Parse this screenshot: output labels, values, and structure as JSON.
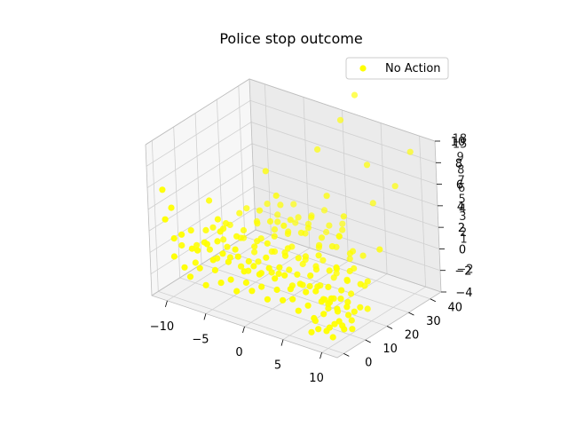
{
  "chart_data": {
    "type": "scatter",
    "title": "Police stop outcome",
    "xlabel": "",
    "ylabel": "",
    "zlabel": "",
    "xlim": [
      -12,
      12
    ],
    "ylim": [
      -3,
      45
    ],
    "zlim": [
      -4,
      10
    ],
    "x_ticks": [
      "−10",
      "−5",
      "0",
      "5",
      "10"
    ],
    "y_ticks": [
      "0",
      "10",
      "20",
      "30",
      "40"
    ],
    "z_ticks_primary": [
      "−4",
      "−2",
      "0",
      "2",
      "4",
      "6",
      "8",
      "10"
    ],
    "z_ticks_overlap": [
      "−2",
      "1",
      "2",
      "3",
      "4",
      "5",
      "6",
      "7",
      "8",
      "9",
      "15",
      "18"
    ],
    "grid": true,
    "legend_position": "top-right",
    "series": [
      {
        "name": "No Action",
        "color": "#ffff00",
        "points": [
          [
            -11.5,
            2,
            5.3
          ],
          [
            -11,
            1,
            2.8
          ],
          [
            -10.5,
            3,
            0.9
          ],
          [
            -10,
            1,
            -0.4
          ],
          [
            -9.5,
            3,
            1.5
          ],
          [
            -9,
            2,
            -1.3
          ],
          [
            -8.5,
            4,
            0.3
          ],
          [
            -8,
            1,
            -1.8
          ],
          [
            -7.5,
            3,
            0.5
          ],
          [
            -7,
            2,
            -0.9
          ],
          [
            -6.5,
            4,
            1.2
          ],
          [
            -6,
            1,
            -2.1
          ],
          [
            -5.5,
            3,
            0.1
          ],
          [
            -5,
            2,
            -0.6
          ],
          [
            -4.5,
            4,
            0.8
          ],
          [
            -4,
            1,
            -1.4
          ],
          [
            -3.5,
            3,
            0.4
          ],
          [
            -3,
            2,
            -1
          ],
          [
            -2.5,
            4,
            1
          ],
          [
            -2,
            1,
            -1.7
          ],
          [
            -1.5,
            3,
            0
          ],
          [
            -1,
            2,
            -0.8
          ],
          [
            -0.5,
            4,
            0.6
          ],
          [
            0,
            1,
            -1.2
          ],
          [
            0.5,
            3,
            0.2
          ],
          [
            1,
            2,
            -0.7
          ],
          [
            1.5,
            4,
            0.9
          ],
          [
            2,
            1,
            -1.5
          ],
          [
            2.5,
            3,
            0.3
          ],
          [
            3,
            2,
            -0.5
          ],
          [
            3.5,
            4,
            0.7
          ],
          [
            4,
            1,
            -1.1
          ],
          [
            4.5,
            3,
            -0.2
          ],
          [
            5,
            2,
            -0.9
          ],
          [
            5.5,
            4,
            0.4
          ],
          [
            6,
            1,
            -1.6
          ],
          [
            6.5,
            3,
            0
          ],
          [
            7,
            2,
            -1
          ],
          [
            7.5,
            4,
            0.2
          ],
          [
            8,
            1,
            -1.8
          ],
          [
            8.5,
            3,
            -0.4
          ],
          [
            9,
            2,
            -1.3
          ],
          [
            9.5,
            4,
            0
          ],
          [
            10,
            1,
            -2.2
          ],
          [
            10.5,
            3,
            -0.6
          ],
          [
            11,
            2,
            -1.5
          ],
          [
            11.5,
            4,
            -0.3
          ],
          [
            -11,
            8,
            -0.5
          ],
          [
            -10,
            9,
            1
          ],
          [
            -9,
            7,
            -1.5
          ],
          [
            -8,
            8,
            0.5
          ],
          [
            -7,
            10,
            -1
          ],
          [
            -6,
            7,
            1.2
          ],
          [
            -5,
            9,
            -0.3
          ],
          [
            -4,
            8,
            0.8
          ],
          [
            -3,
            10,
            -1.2
          ],
          [
            -2,
            7,
            0.3
          ],
          [
            -1,
            9,
            -0.8
          ],
          [
            0,
            8,
            1
          ],
          [
            1,
            10,
            -0.5
          ],
          [
            2,
            7,
            0.7
          ],
          [
            3,
            9,
            -1
          ],
          [
            4,
            8,
            0.4
          ],
          [
            5,
            10,
            -0.7
          ],
          [
            6,
            7,
            0.9
          ],
          [
            7,
            9,
            -1.3
          ],
          [
            8,
            8,
            0.2
          ],
          [
            9,
            10,
            -0.9
          ],
          [
            10,
            7,
            0.5
          ],
          [
            11,
            9,
            -1.5
          ],
          [
            -10.5,
            13,
            -1
          ],
          [
            -9.5,
            14,
            0.5
          ],
          [
            -8.5,
            12,
            -0.8
          ],
          [
            -7.5,
            15,
            1
          ],
          [
            -6.5,
            13,
            -0.2
          ],
          [
            -5.5,
            14,
            0.9
          ],
          [
            -4.5,
            12,
            -1.4
          ],
          [
            -3.5,
            15,
            0.3
          ],
          [
            -2.5,
            13,
            -0.6
          ],
          [
            -1.5,
            14,
            1.2
          ],
          [
            -0.5,
            12,
            -1
          ],
          [
            0.5,
            15,
            0.4
          ],
          [
            1.5,
            13,
            -0.4
          ],
          [
            2.5,
            14,
            0.8
          ],
          [
            3.5,
            12,
            -1.2
          ],
          [
            4.5,
            15,
            0.1
          ],
          [
            5.5,
            13,
            -0.9
          ],
          [
            6.5,
            14,
            0.6
          ],
          [
            7.5,
            12,
            -1.5
          ],
          [
            8.5,
            15,
            0
          ],
          [
            9.5,
            13,
            -0.7
          ],
          [
            10.5,
            14,
            0.3
          ],
          [
            -10,
            19,
            0
          ],
          [
            -9,
            20,
            -1
          ],
          [
            -8,
            18,
            1
          ],
          [
            -7,
            21,
            -0.5
          ],
          [
            -6,
            19,
            0.7
          ],
          [
            -5,
            20,
            -1.2
          ],
          [
            -4,
            18,
            0.3
          ],
          [
            -3,
            21,
            -0.8
          ],
          [
            -2,
            19,
            1.1
          ],
          [
            -1,
            20,
            -0.3
          ],
          [
            0,
            18,
            0.6
          ],
          [
            1,
            21,
            -1
          ],
          [
            2,
            19,
            0.2
          ],
          [
            3,
            20,
            -0.6
          ],
          [
            4,
            18,
            0.9
          ],
          [
            5,
            21,
            -1.3
          ],
          [
            6,
            19,
            0
          ],
          [
            7,
            20,
            -0.9
          ],
          [
            8,
            18,
            0.4
          ],
          [
            9,
            21,
            -1.1
          ],
          [
            10,
            19,
            -0.2
          ],
          [
            -9.5,
            25,
            -0.4
          ],
          [
            -8.5,
            26,
            0.8
          ],
          [
            -7.5,
            24,
            -1
          ],
          [
            -6.5,
            27,
            0.2
          ],
          [
            -5.5,
            25,
            -0.7
          ],
          [
            -4.5,
            26,
            1
          ],
          [
            -3.5,
            24,
            -1.3
          ],
          [
            -2.5,
            27,
            0.4
          ],
          [
            -1.5,
            25,
            -0.5
          ],
          [
            -0.5,
            26,
            0.9
          ],
          [
            0.5,
            24,
            -1.1
          ],
          [
            1.5,
            27,
            0.1
          ],
          [
            2.5,
            25,
            -0.8
          ],
          [
            3.5,
            26,
            0.6
          ],
          [
            4.5,
            24,
            -1.4
          ],
          [
            5.5,
            27,
            0.3
          ],
          [
            6.5,
            25,
            -0.6
          ],
          [
            7.5,
            26,
            0.7
          ],
          [
            -9,
            31,
            0.5
          ],
          [
            -8,
            32,
            -0.6
          ],
          [
            -7,
            30,
            0.9
          ],
          [
            -6,
            33,
            -1
          ],
          [
            -5,
            31,
            0.2
          ],
          [
            -4,
            32,
            -0.8
          ],
          [
            -3,
            30,
            1
          ],
          [
            -2,
            33,
            -0.4
          ],
          [
            -1,
            31,
            0.6
          ],
          [
            0,
            32,
            -1.1
          ],
          [
            1,
            30,
            0.3
          ],
          [
            2,
            33,
            -0.7
          ],
          [
            3,
            31,
            0.8
          ],
          [
            4,
            32,
            -1.2
          ],
          [
            5,
            30,
            0
          ],
          [
            -8,
            37,
            0.4
          ],
          [
            -7,
            38,
            -0.5
          ],
          [
            -6,
            36,
            0.9
          ],
          [
            -5,
            39,
            -0.9
          ],
          [
            -4,
            37,
            0.1
          ],
          [
            -3,
            38,
            -0.4
          ],
          [
            -2,
            36,
            0.7
          ],
          [
            -1,
            39,
            -0.8
          ],
          [
            0,
            37,
            0.3
          ],
          [
            1,
            38,
            -0.6
          ],
          [
            2,
            36,
            0.5
          ],
          [
            -6,
            42,
            0.2
          ],
          [
            -4,
            43,
            -0.5
          ],
          [
            -2,
            42,
            0.6
          ],
          [
            0,
            43,
            -0.3
          ],
          [
            -11,
            4,
            3.5
          ],
          [
            -9.5,
            16,
            3
          ],
          [
            -7,
            11,
            2.5
          ],
          [
            -3,
            24,
            4
          ],
          [
            1,
            33,
            3.8
          ],
          [
            5,
            40,
            3.2
          ],
          [
            9,
            44,
            8.4
          ],
          [
            0,
            44,
            9.2
          ],
          [
            5,
            38,
            7
          ],
          [
            -2,
            40,
            6.5
          ],
          [
            -6,
            30,
            4.8
          ],
          [
            4,
            30,
            3
          ],
          [
            10,
            25,
            2
          ],
          [
            8,
            40,
            5.5
          ],
          [
            2,
            44,
            12
          ],
          [
            -1,
            20,
            2.2
          ],
          [
            -5,
            5,
            2.6
          ],
          [
            6,
            10,
            -0.5
          ],
          [
            8,
            12,
            1.5
          ],
          [
            11,
            15,
            -2
          ],
          [
            9.5,
            5,
            -2.5
          ],
          [
            10.5,
            8,
            -1.8
          ],
          [
            7,
            5,
            -2.8
          ],
          [
            11.5,
            6,
            -2.6
          ],
          [
            9,
            3,
            -3
          ],
          [
            10.8,
            4,
            -2.2
          ],
          [
            8.2,
            7,
            -1.2
          ],
          [
            7.6,
            9,
            -2
          ],
          [
            9.9,
            10,
            -1
          ],
          [
            11.2,
            11,
            -1.3
          ],
          [
            6.6,
            11,
            -1.7
          ],
          [
            10.1,
            2,
            -3.2
          ],
          [
            8.8,
            0,
            -2.5
          ],
          [
            11.9,
            1,
            -1.9
          ],
          [
            7.3,
            2,
            -3.4
          ],
          [
            9.4,
            7,
            -1.6
          ],
          [
            10.6,
            9,
            -2.4
          ],
          [
            8.7,
            6,
            -0.8
          ]
        ]
      }
    ]
  }
}
